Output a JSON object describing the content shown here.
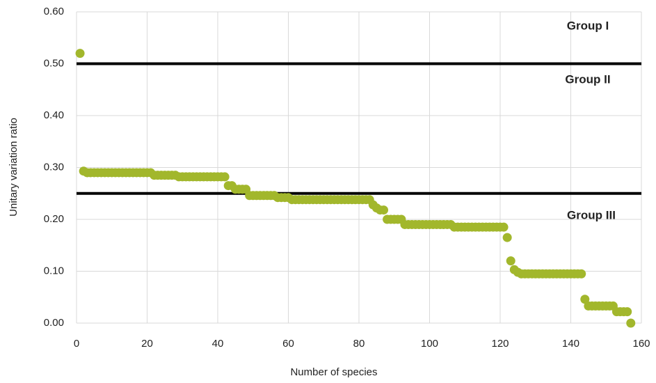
{
  "chart_data": {
    "type": "scatter",
    "xlabel": "Number of species",
    "ylabel": "Unitary variation ratio",
    "xlim": [
      0,
      160
    ],
    "xticks": [
      0,
      20,
      40,
      60,
      80,
      100,
      120,
      140,
      160
    ],
    "ylim": [
      0,
      0.6
    ],
    "yticks": [
      {
        "value": 0,
        "label": "0.00"
      },
      {
        "value": 0.1,
        "label": "0.10"
      },
      {
        "value": 0.2,
        "label": "0.20"
      },
      {
        "value": 0.3,
        "label": "0.30"
      },
      {
        "value": 0.4,
        "label": "0.40"
      },
      {
        "value": 0.5,
        "label": "0.50"
      },
      {
        "value": 0.6,
        "label": "0.60"
      }
    ],
    "grid": true,
    "reference_lines": [
      {
        "value": 0.5,
        "color": "#000000"
      },
      {
        "value": 0.25,
        "color": "#000000"
      }
    ],
    "annotations": [
      "Group I",
      "Group II",
      "Group III"
    ],
    "series": [
      {
        "color": "#a2b72c",
        "x": [
          1,
          2,
          3,
          4,
          5,
          6,
          7,
          8,
          9,
          10,
          11,
          12,
          13,
          14,
          15,
          16,
          17,
          18,
          19,
          20,
          21,
          22,
          23,
          24,
          25,
          26,
          27,
          28,
          29,
          30,
          31,
          32,
          33,
          34,
          35,
          36,
          37,
          38,
          39,
          40,
          41,
          42,
          43,
          44,
          45,
          46,
          47,
          48,
          49,
          50,
          51,
          52,
          53,
          54,
          55,
          56,
          57,
          58,
          59,
          60,
          61,
          62,
          63,
          64,
          65,
          66,
          67,
          68,
          69,
          70,
          71,
          72,
          73,
          74,
          75,
          76,
          77,
          78,
          79,
          80,
          81,
          82,
          83,
          84,
          85,
          86,
          87,
          88,
          89,
          90,
          91,
          92,
          93,
          94,
          95,
          96,
          97,
          98,
          99,
          100,
          101,
          102,
          103,
          104,
          105,
          106,
          107,
          108,
          109,
          110,
          111,
          112,
          113,
          114,
          115,
          116,
          117,
          118,
          119,
          120,
          121,
          122,
          123,
          124,
          125,
          126,
          127,
          128,
          129,
          130,
          131,
          132,
          133,
          134,
          135,
          136,
          137,
          138,
          139,
          140,
          141,
          142,
          143,
          144,
          145,
          146,
          147,
          148,
          149,
          150,
          151,
          152,
          153,
          154,
          155,
          156,
          157
        ],
        "values": [
          0.52,
          0.293,
          0.29,
          0.29,
          0.29,
          0.29,
          0.29,
          0.29,
          0.29,
          0.29,
          0.29,
          0.29,
          0.29,
          0.29,
          0.29,
          0.29,
          0.29,
          0.29,
          0.29,
          0.29,
          0.29,
          0.285,
          0.285,
          0.285,
          0.285,
          0.285,
          0.285,
          0.285,
          0.282,
          0.282,
          0.282,
          0.282,
          0.282,
          0.282,
          0.282,
          0.282,
          0.282,
          0.282,
          0.282,
          0.282,
          0.282,
          0.282,
          0.265,
          0.265,
          0.258,
          0.258,
          0.258,
          0.258,
          0.246,
          0.246,
          0.246,
          0.246,
          0.246,
          0.246,
          0.246,
          0.246,
          0.242,
          0.242,
          0.242,
          0.242,
          0.238,
          0.238,
          0.238,
          0.238,
          0.238,
          0.238,
          0.238,
          0.238,
          0.238,
          0.238,
          0.238,
          0.238,
          0.238,
          0.238,
          0.238,
          0.238,
          0.238,
          0.238,
          0.238,
          0.238,
          0.238,
          0.238,
          0.238,
          0.228,
          0.222,
          0.218,
          0.218,
          0.2,
          0.2,
          0.2,
          0.2,
          0.2,
          0.19,
          0.19,
          0.19,
          0.19,
          0.19,
          0.19,
          0.19,
          0.19,
          0.19,
          0.19,
          0.19,
          0.19,
          0.19,
          0.19,
          0.185,
          0.185,
          0.185,
          0.185,
          0.185,
          0.185,
          0.185,
          0.185,
          0.185,
          0.185,
          0.185,
          0.185,
          0.185,
          0.185,
          0.185,
          0.165,
          0.12,
          0.103,
          0.098,
          0.095,
          0.095,
          0.095,
          0.095,
          0.095,
          0.095,
          0.095,
          0.095,
          0.095,
          0.095,
          0.095,
          0.095,
          0.095,
          0.095,
          0.095,
          0.095,
          0.095,
          0.095,
          0.046,
          0.033,
          0.033,
          0.033,
          0.033,
          0.033,
          0.033,
          0.033,
          0.033,
          0.022,
          0.022,
          0.022,
          0.022,
          0
        ]
      }
    ]
  }
}
